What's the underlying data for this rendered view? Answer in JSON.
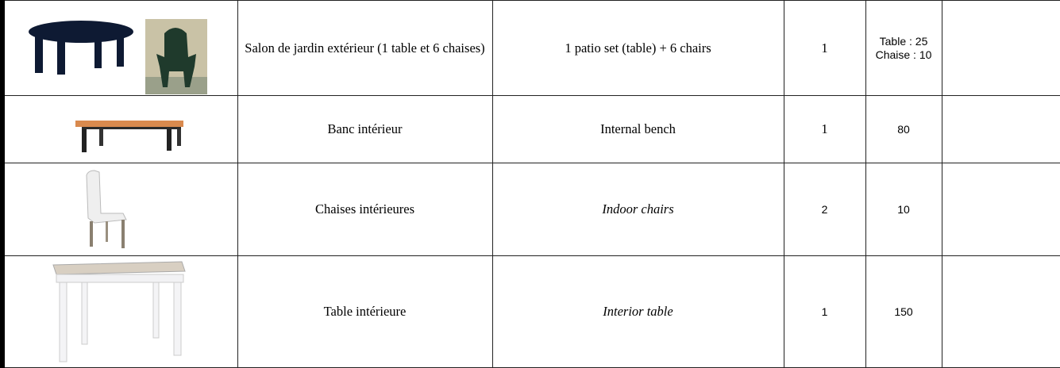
{
  "table": {
    "rows": [
      {
        "french": "Salon de jardin extérieur (1 table et 6 chaises)",
        "english": "1 patio set (table) + 6 chairs",
        "quantity": 1,
        "value_lines": [
          "Table : 25",
          "Chaise : 10"
        ]
      },
      {
        "french": "Banc intérieur",
        "english": "Internal bench",
        "quantity": 1,
        "value": 80
      },
      {
        "french": "Chaises intérieures",
        "english": "Indoor chairs",
        "quantity": 2,
        "value": 10
      },
      {
        "french": "Table intérieure",
        "english": "Interior table",
        "quantity": 1,
        "value": 150
      }
    ]
  }
}
